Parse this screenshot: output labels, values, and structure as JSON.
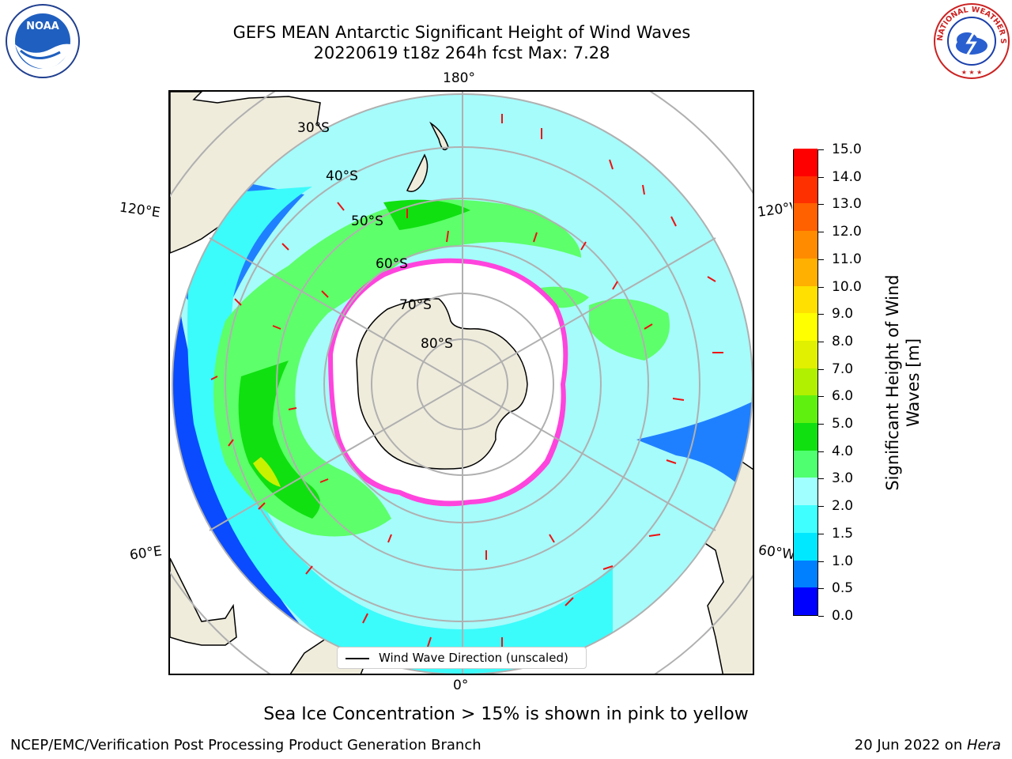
{
  "title_line1": "GEFS MEAN Antarctic Significant Height of Wind Waves",
  "title_line2": "20220619 t18z 264h fcst   Max: 7.28",
  "logos": {
    "left": "NOAA",
    "right": "NATIONAL WEATHER SERVICE"
  },
  "map": {
    "lon_labels": {
      "top": "180°",
      "bottom": "0°",
      "upper_left": "120°E",
      "upper_right": "120°W",
      "lower_left": "60°E",
      "lower_right": "60°W"
    },
    "lat_labels": [
      "30°S",
      "40°S",
      "50°S",
      "60°S",
      "70°S",
      "80°S"
    ],
    "colors": {
      "land": "#efecdc",
      "ice": "#ffffff",
      "grid": "#b0b0b0",
      "arrow": "#ee1111"
    }
  },
  "legend_text": "Wind Wave Direction (unscaled)",
  "colorbar": {
    "title_line1": "Significant Height of Wind",
    "title_line2": "Waves [m]",
    "ticks": [
      "0.0",
      "0.5",
      "1.0",
      "1.5",
      "2.0",
      "3.0",
      "4.0",
      "5.0",
      "6.0",
      "7.0",
      "8.0",
      "9.0",
      "10.0",
      "11.0",
      "12.0",
      "13.0",
      "14.0",
      "15.0"
    ],
    "colors": [
      "#0000ff",
      "#0080ff",
      "#00e8ff",
      "#40ffff",
      "#a0ffff",
      "#50ff70",
      "#10e010",
      "#60f010",
      "#b0f000",
      "#e0f000",
      "#ffff00",
      "#ffe000",
      "#ffb000",
      "#ff8c00",
      "#ff6000",
      "#ff3000",
      "#ff0000"
    ]
  },
  "caption": "Sea Ice Concentration > 15% is shown in pink to yellow",
  "footer_left": "NCEP/EMC/Verification Post Processing Product Generation Branch",
  "footer_right_prefix": "20 Jun 2022 on ",
  "footer_right_host": "Hera"
}
